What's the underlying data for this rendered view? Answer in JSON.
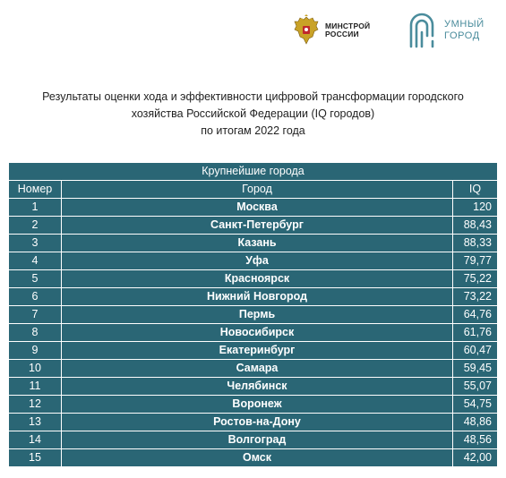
{
  "logos": {
    "ministry": {
      "line1": "МИНСТРОЙ",
      "line2": "РОССИИ"
    },
    "smart_city": {
      "line1": "УМНЫЙ",
      "line2": "ГОРОД",
      "color": "#4a8c9c"
    }
  },
  "title": {
    "line1": "Результаты оценки хода и эффективности цифровой трансформации городского",
    "line2": "хозяйства Российской Федерации (IQ городов)",
    "line3": "по итогам 2022 года"
  },
  "table": {
    "section_title": "Крупнейшие города",
    "headers": {
      "number": "Номер",
      "city": "Город",
      "score": "IQ"
    },
    "header_color": "#2a6675",
    "rows": [
      {
        "number": "1",
        "city": "Москва",
        "score": "120"
      },
      {
        "number": "2",
        "city": "Санкт-Петербург",
        "score": "88,43"
      },
      {
        "number": "3",
        "city": "Казань",
        "score": "88,33"
      },
      {
        "number": "4",
        "city": "Уфа",
        "score": "79,77"
      },
      {
        "number": "5",
        "city": "Красноярск",
        "score": "75,22"
      },
      {
        "number": "6",
        "city": "Нижний Новгород",
        "score": "73,22"
      },
      {
        "number": "7",
        "city": "Пермь",
        "score": "64,76"
      },
      {
        "number": "8",
        "city": "Новосибирск",
        "score": "61,76"
      },
      {
        "number": "9",
        "city": "Екатеринбург",
        "score": "60,47"
      },
      {
        "number": "10",
        "city": "Самара",
        "score": "59,45"
      },
      {
        "number": "11",
        "city": "Челябинск",
        "score": "55,07"
      },
      {
        "number": "12",
        "city": "Воронеж",
        "score": "54,75"
      },
      {
        "number": "13",
        "city": "Ростов-на-Дону",
        "score": "48,86"
      },
      {
        "number": "14",
        "city": "Волгоград",
        "score": "48,56"
      },
      {
        "number": "15",
        "city": "Омск",
        "score": "42,00"
      }
    ]
  }
}
